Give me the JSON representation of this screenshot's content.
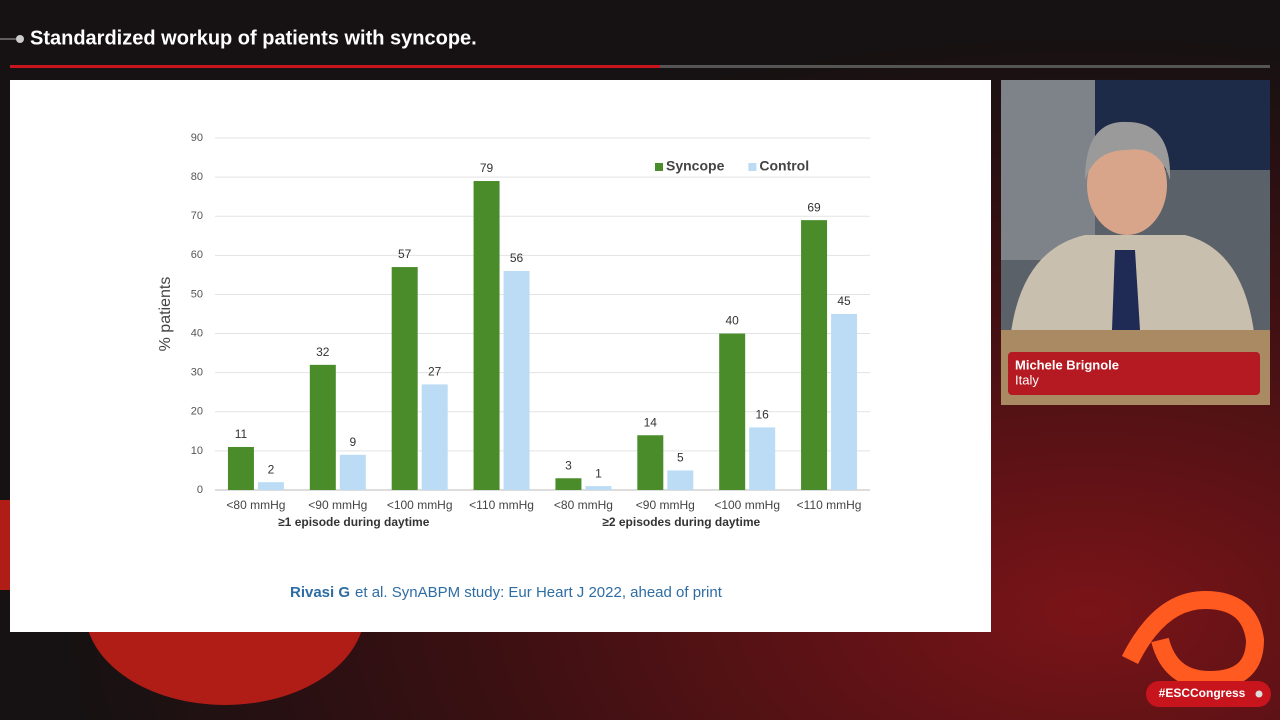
{
  "header": {
    "title": "Standardized workup of patients with syncope."
  },
  "chart_data": {
    "type": "bar",
    "categories": [
      "<80 mmHg",
      "<90 mmHg",
      "<100 mmHg",
      "<110 mmHg",
      "<80 mmHg",
      "<90 mmHg",
      "<100 mmHg",
      "<110 mmHg"
    ],
    "groups": [
      "≥1 episode during daytime",
      "≥2 episodes during daytime"
    ],
    "series": [
      {
        "name": "Syncope",
        "color": "#4a8c2a",
        "values": [
          11,
          32,
          57,
          79,
          3,
          14,
          40,
          69
        ]
      },
      {
        "name": "Control",
        "color": "#bcdcf5",
        "values": [
          2,
          9,
          27,
          56,
          1,
          5,
          16,
          45
        ]
      }
    ],
    "ylabel": "% patients",
    "ylim": [
      0,
      90
    ],
    "yticks": [
      0,
      10,
      20,
      30,
      40,
      50,
      60,
      70,
      80,
      90
    ],
    "grid": true,
    "legend": "top-right"
  },
  "citation": {
    "author": "Rivasi G",
    "rest": "et al. SynABPM study: Eur Heart J 2022, ahead of print"
  },
  "speaker": {
    "name": "Michele Brignole",
    "country": "Italy"
  },
  "hashtag": "#ESCCongress"
}
